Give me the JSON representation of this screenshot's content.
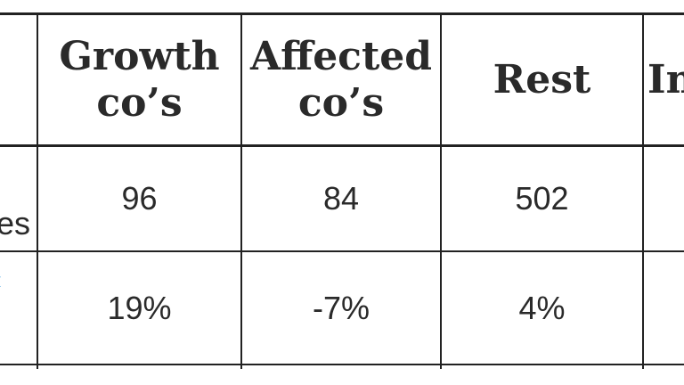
{
  "table": {
    "headers": [
      {
        "line1": "Growth",
        "line2": "co’s"
      },
      {
        "line1": "Affected",
        "line2": "co’s"
      },
      {
        "line1": "Rest",
        "line2": ""
      },
      {
        "line1": "In",
        "line2": ""
      }
    ],
    "rows": [
      {
        "label_fragment": "es",
        "values": [
          "96",
          "84",
          "502",
          ""
        ]
      },
      {
        "label_fragment": "",
        "values": [
          "19%",
          "-7%",
          "4%",
          ""
        ]
      }
    ]
  },
  "colors": {
    "text": "#2a2a2a",
    "lines": "#222222",
    "accent": "#4aa3e0"
  }
}
